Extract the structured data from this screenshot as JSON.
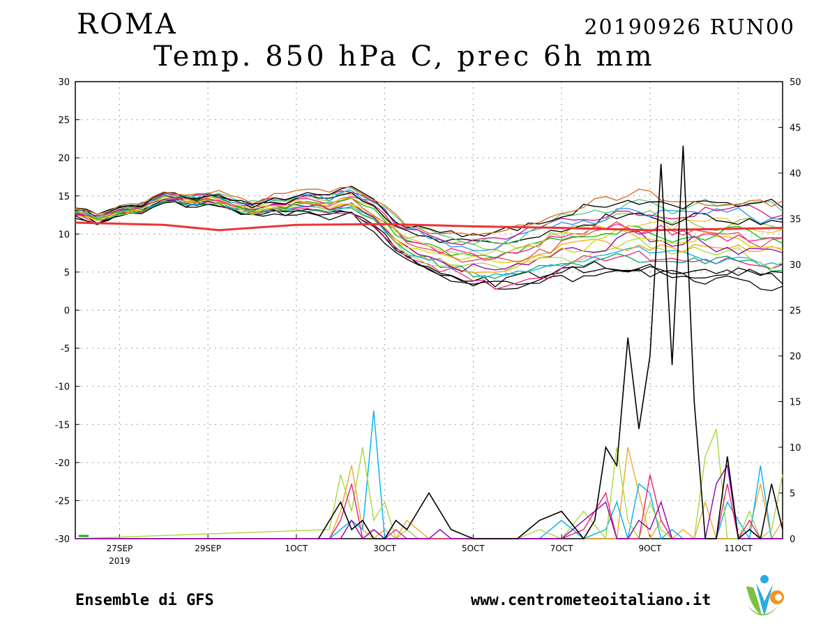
{
  "header": {
    "city": "ROMA",
    "run": "20190926 RUN00",
    "subtitle": "Temp. 850 hPa C, prec 6h mm"
  },
  "footer": {
    "left": "Ensemble di GFS",
    "right": "www.centrometeoitaliano.it"
  },
  "logo": {
    "icon": "vmc-logo-icon",
    "colors": [
      "#7ac143",
      "#29abe2",
      "#f7941d"
    ]
  },
  "chart_data": {
    "type": "line",
    "title": "Temp. 850 hPa C, prec 6h mm",
    "x_ticks": [
      "27SEP",
      "29SEP",
      "1OCT",
      "3OCT",
      "5OCT",
      "7OCT",
      "9OCT",
      "11OCT"
    ],
    "x_tick_sub": "2019",
    "x_range": [
      0,
      64
    ],
    "x_tick_positions": [
      4,
      12,
      20,
      28,
      36,
      44,
      52,
      60
    ],
    "y_left": {
      "ticks": [
        30,
        25,
        20,
        15,
        10,
        5,
        0,
        -5,
        -10,
        -15,
        -20,
        -25,
        -30
      ],
      "ylim": [
        -30,
        30
      ]
    },
    "y_right": {
      "ticks": [
        50,
        45,
        40,
        35,
        30,
        25,
        20,
        15,
        10,
        5,
        0
      ],
      "ylim": [
        0,
        50
      ]
    },
    "grid": true,
    "colors": [
      "#000000",
      "#000000",
      "#000000",
      "#e8227a",
      "#00a651",
      "#00aeef",
      "#a8d840",
      "#ffa500",
      "#8b00b0",
      "#d4d800",
      "#e05050",
      "#00c000",
      "#ff1493",
      "#f0c040",
      "#8dc63f",
      "#000000",
      "#1e90ff",
      "#c71585",
      "#50c878",
      "#000000",
      "#d2691e"
    ],
    "climatology": {
      "name": "",
      "color": "#ee3333",
      "x": [
        0,
        8,
        13,
        20,
        28,
        36,
        44,
        52,
        64
      ],
      "y": [
        11.5,
        11.2,
        10.5,
        11.2,
        11.3,
        11.0,
        10.8,
        10.5,
        10.8
      ]
    },
    "temp_mean": {
      "x": [
        0,
        1,
        2,
        3,
        4,
        5,
        6,
        7,
        8,
        9,
        10,
        11,
        12,
        13,
        14,
        15,
        16,
        17,
        18,
        19,
        20,
        21,
        22,
        23,
        24,
        25,
        26,
        27,
        28,
        29,
        30,
        31,
        32,
        33,
        34,
        35,
        36,
        37,
        38,
        39,
        40,
        41,
        42,
        43,
        44,
        45,
        46,
        47,
        48,
        49,
        50,
        51,
        52,
        53,
        54,
        55,
        56,
        57,
        58,
        59,
        60,
        61,
        62,
        63,
        64
      ],
      "y": [
        12.9,
        12.5,
        12.0,
        12.5,
        13.0,
        13.2,
        13.5,
        14.2,
        14.8,
        14.8,
        14.5,
        14.4,
        14.7,
        14.5,
        14.0,
        13.5,
        13.2,
        13.5,
        13.8,
        13.6,
        14.0,
        14.2,
        14.0,
        13.8,
        14.2,
        14.5,
        13.5,
        12.8,
        11.5,
        10.0,
        9.0,
        8.5,
        8.0,
        7.6,
        7.3,
        7.0,
        6.8,
        6.6,
        6.5,
        6.7,
        7.0,
        7.5,
        8.0,
        8.3,
        8.8,
        9.0,
        9.3,
        9.5,
        9.8,
        10.0,
        10.2,
        10.0,
        10.0,
        9.8,
        9.6,
        9.8,
        9.7,
        9.8,
        9.6,
        9.5,
        9.3,
        9.2,
        9.0,
        9.0,
        8.8
      ]
    },
    "temp_spread": {
      "x": [
        0,
        8,
        16,
        24,
        26,
        28,
        30,
        32,
        34,
        36,
        38,
        40,
        44,
        48,
        52,
        56,
        60,
        64
      ],
      "y": [
        0.4,
        0.4,
        0.6,
        1.2,
        1.4,
        1.6,
        1.8,
        2.0,
        2.2,
        2.4,
        2.6,
        2.8,
        3.0,
        3.2,
        3.4,
        3.5,
        3.6,
        3.8
      ]
    },
    "precip": {
      "x": [
        23,
        24,
        25,
        26,
        27,
        28,
        29,
        30,
        31,
        32,
        33,
        34,
        35,
        36,
        38,
        40,
        42,
        44,
        46,
        48,
        49,
        50,
        51,
        52,
        53,
        54,
        55,
        56,
        57,
        58,
        59,
        60,
        61,
        62,
        63,
        64
      ],
      "series": [
        {
          "name": "",
          "values": [
            0,
            3,
            8,
            1,
            0,
            1,
            0,
            2,
            1,
            0,
            0,
            0,
            0,
            0,
            0,
            0,
            2,
            3,
            0,
            0,
            0,
            10,
            5,
            0,
            2,
            0,
            1,
            0,
            4,
            0,
            0,
            0,
            1,
            6,
            0,
            2
          ]
        },
        {
          "name": "",
          "values": [
            0,
            1,
            2,
            1,
            14,
            0,
            2,
            1,
            0,
            0,
            0,
            0,
            0,
            0,
            0,
            0,
            0,
            2,
            0,
            1,
            4,
            0,
            6,
            5,
            0,
            1,
            0,
            0,
            0,
            0,
            4,
            2,
            0,
            8,
            0,
            0
          ]
        },
        {
          "name": "",
          "values": [
            1,
            7,
            3,
            10,
            2,
            4,
            0,
            1,
            0,
            0,
            0,
            0,
            0,
            0,
            0,
            0,
            1,
            0,
            3,
            0,
            10,
            2,
            0,
            4,
            1,
            0,
            0,
            0,
            9,
            12,
            0,
            0,
            3,
            0,
            1,
            7
          ]
        },
        {
          "name": "",
          "values": [
            0,
            2,
            6,
            0,
            1,
            0,
            1,
            0,
            0,
            0,
            0,
            0,
            0,
            0,
            0,
            0,
            0,
            0,
            1,
            5,
            0,
            0,
            0,
            7,
            2,
            0,
            0,
            0,
            0,
            0,
            6,
            0,
            2,
            0,
            0,
            0
          ]
        },
        {
          "name": "",
          "values": [
            0,
            0,
            2,
            0,
            1,
            0,
            0,
            0,
            0,
            0,
            1,
            0,
            0,
            0,
            0,
            0,
            0,
            0,
            2,
            4,
            0,
            0,
            2,
            1,
            4,
            0,
            0,
            0,
            0,
            6,
            8,
            0,
            0,
            0,
            0,
            0
          ]
        }
      ]
    },
    "precip_black": {
      "x": [
        22,
        24,
        25,
        26,
        27,
        28,
        29,
        30,
        32,
        34,
        36,
        38,
        40,
        42,
        44,
        46,
        47,
        48,
        49,
        50,
        51,
        52,
        53,
        54,
        55,
        56,
        57,
        58,
        59,
        60,
        61,
        62,
        63,
        64
      ],
      "y": [
        0,
        4,
        1,
        2,
        0,
        0,
        2,
        1,
        5,
        1,
        0,
        0,
        0,
        2,
        3,
        0,
        2,
        10,
        8,
        22,
        12,
        20,
        41,
        19,
        43,
        15,
        0,
        0,
        9,
        0,
        1,
        0,
        6,
        1
      ]
    }
  }
}
